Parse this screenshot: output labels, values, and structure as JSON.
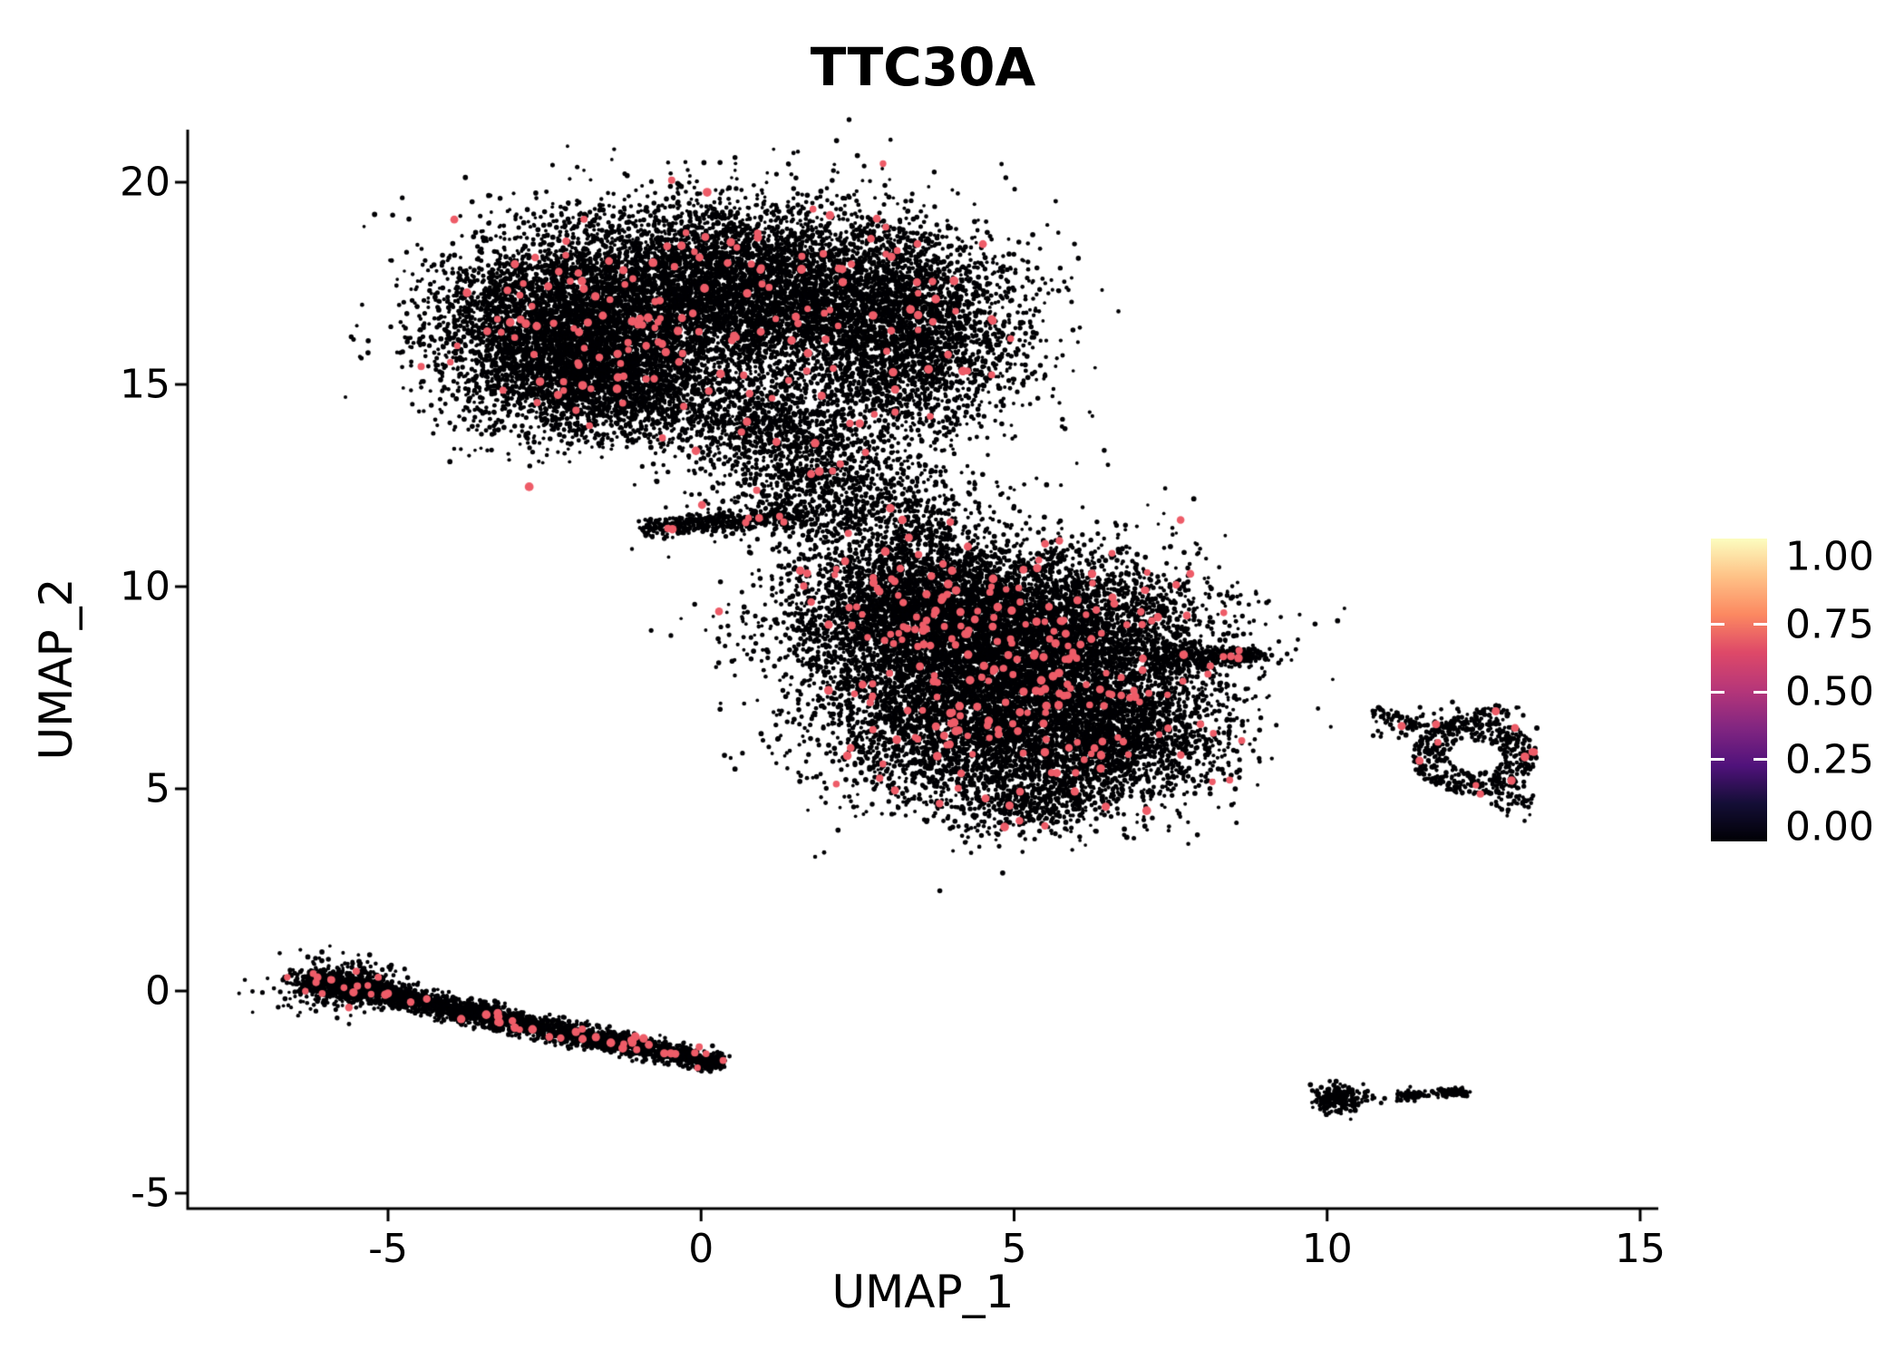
{
  "chart_data": {
    "type": "scatter",
    "title": "TTC30A",
    "xlabel": "UMAP_1",
    "ylabel": "UMAP_2",
    "xlim": [
      -8.2,
      15.4
    ],
    "ylim": [
      -5.7,
      21.3
    ],
    "xticks": [
      -5,
      0,
      5,
      10,
      15
    ],
    "yticks": [
      20,
      15,
      10,
      5,
      0,
      -5
    ],
    "grid": false,
    "legend_position": "right",
    "point_color_zero": "#000004",
    "point_color_expressing": "#EE5C68",
    "point_radius_px": 2.3,
    "expressing_point_radius_px": 4.2,
    "colorbar": {
      "labels": [
        "1.00",
        "0.75",
        "0.50",
        "0.25",
        "0.00"
      ],
      "stops": [
        [
          0.0,
          "#000004"
        ],
        [
          0.125,
          "#140E36"
        ],
        [
          0.25,
          "#50127B"
        ],
        [
          0.375,
          "#822681"
        ],
        [
          0.5,
          "#B63679"
        ],
        [
          0.625,
          "#DE4968"
        ],
        [
          0.75,
          "#FC8961"
        ],
        [
          0.875,
          "#FEC287"
        ],
        [
          1.0,
          "#FCFDBF"
        ]
      ]
    },
    "clusters": [
      {
        "name": "top-blob-left",
        "type": "gaussian",
        "cx": -2.2,
        "cy": 16.4,
        "sx": 1.05,
        "sy": 1.15,
        "n": 4200,
        "pink": 55
      },
      {
        "name": "top-blob-center",
        "type": "gaussian",
        "cx": 0.4,
        "cy": 17.4,
        "sx": 1.35,
        "sy": 1.05,
        "n": 4800,
        "pink": 60
      },
      {
        "name": "top-blob-right",
        "type": "gaussian",
        "cx": 3.1,
        "cy": 16.4,
        "sx": 1.05,
        "sy": 1.3,
        "n": 3600,
        "pink": 45
      },
      {
        "name": "top-lower-lobe",
        "type": "gaussian",
        "cx": -1.3,
        "cy": 14.9,
        "sx": 1.0,
        "sy": 0.65,
        "n": 1600,
        "pink": 15
      },
      {
        "name": "top-notch",
        "type": "gaussian",
        "cx": 1.1,
        "cy": 13.9,
        "sx": 0.75,
        "sy": 0.55,
        "n": 700,
        "pink": 8
      },
      {
        "name": "bridge",
        "type": "gaussian",
        "cx": 1.9,
        "cy": 12.5,
        "sx": 0.85,
        "sy": 0.75,
        "n": 800,
        "pink": 10
      },
      {
        "name": "bridge-stripe",
        "type": "band",
        "x1": -0.9,
        "y1": 11.45,
        "x2": 1.6,
        "y2": 11.75,
        "w": 0.12,
        "n": 450,
        "pink": 6
      },
      {
        "name": "bridge-right",
        "type": "gaussian",
        "cx": 3.3,
        "cy": 11.4,
        "sx": 0.65,
        "sy": 0.85,
        "n": 450,
        "pink": 8
      },
      {
        "name": "mid-blob-nw",
        "type": "gaussian",
        "cx": 3.6,
        "cy": 9.3,
        "sx": 1.15,
        "sy": 1.0,
        "n": 3800,
        "pink": 70
      },
      {
        "name": "mid-blob-ne",
        "type": "gaussian",
        "cx": 5.7,
        "cy": 8.7,
        "sx": 1.25,
        "sy": 1.05,
        "n": 3800,
        "pink": 75
      },
      {
        "name": "mid-blob-sw",
        "type": "gaussian",
        "cx": 4.4,
        "cy": 6.7,
        "sx": 1.25,
        "sy": 1.05,
        "n": 3600,
        "pink": 70
      },
      {
        "name": "mid-blob-se",
        "type": "gaussian",
        "cx": 6.6,
        "cy": 6.3,
        "sx": 0.9,
        "sy": 0.85,
        "n": 1900,
        "pink": 35
      },
      {
        "name": "mid-right-tail",
        "type": "band",
        "x1": 7.2,
        "y1": 8.2,
        "x2": 8.9,
        "y2": 8.3,
        "w": 0.22,
        "wend": 0.08,
        "n": 420,
        "pink": 6
      },
      {
        "name": "mid-bottom-tip",
        "type": "gaussian",
        "cx": 5.2,
        "cy": 4.7,
        "sx": 0.6,
        "sy": 0.4,
        "n": 420,
        "pink": 8
      },
      {
        "name": "right-ring",
        "type": "annulus",
        "cx": 12.35,
        "cy": 5.8,
        "r0": 0.4,
        "r1": 0.95,
        "ex": 1.05,
        "ey": 1.0,
        "n": 520,
        "pink": 8
      },
      {
        "name": "ring-top-cap",
        "type": "gaussian",
        "cx": 12.5,
        "cy": 6.85,
        "sx": 0.28,
        "sy": 0.12,
        "n": 50,
        "pink": 1
      },
      {
        "name": "ring-left-wisp",
        "type": "gaussian",
        "cx": 11.35,
        "cy": 6.6,
        "sx": 0.33,
        "sy": 0.18,
        "n": 70,
        "pink": 2
      },
      {
        "name": "ring-far-left",
        "type": "gaussian",
        "cx": 10.95,
        "cy": 6.85,
        "sx": 0.12,
        "sy": 0.08,
        "n": 25,
        "pink": 0
      },
      {
        "name": "ring-tail",
        "type": "gaussian",
        "cx": 12.95,
        "cy": 4.85,
        "sx": 0.18,
        "sy": 0.28,
        "n": 60,
        "pink": 1
      },
      {
        "name": "left-band",
        "type": "band",
        "x1": -6.3,
        "y1": 0.3,
        "x2": 0.3,
        "y2": -1.8,
        "w": 0.16,
        "wend": 0.12,
        "n": 2800,
        "pink": 45
      },
      {
        "name": "left-band-head",
        "type": "gaussian",
        "cx": -5.7,
        "cy": 0.15,
        "sx": 0.5,
        "sy": 0.3,
        "n": 500,
        "pink": 8
      },
      {
        "name": "br-round-blob",
        "type": "gaussian",
        "cx": 10.15,
        "cy": -2.7,
        "sx": 0.22,
        "sy": 0.17,
        "n": 220,
        "pink": 0
      },
      {
        "name": "br-streak-1",
        "type": "band",
        "x1": 11.15,
        "y1": -2.55,
        "x2": 11.55,
        "y2": -2.58,
        "w": 0.06,
        "n": 70,
        "pink": 0
      },
      {
        "name": "br-streak-2",
        "type": "band",
        "x1": 11.75,
        "y1": -2.52,
        "x2": 12.2,
        "y2": -2.5,
        "w": 0.06,
        "n": 90,
        "pink": 0
      }
    ],
    "outliers": [
      [
        6.8,
        3.8
      ],
      [
        9.0,
        8.32
      ],
      [
        10.6,
        -2.62
      ],
      [
        13.35,
        6.5
      ]
    ]
  }
}
